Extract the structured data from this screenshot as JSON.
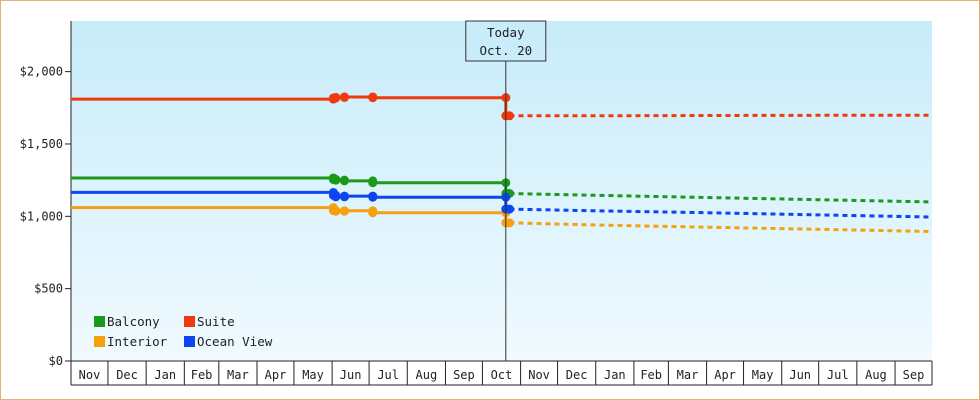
{
  "chart_data": {
    "type": "line",
    "title": "",
    "xlabel": "",
    "ylabel": "",
    "ylim": [
      0,
      2350
    ],
    "y_ticks": [
      {
        "value": 0,
        "label": "$0"
      },
      {
        "value": 500,
        "label": "$500"
      },
      {
        "value": 1000,
        "label": "$1,000"
      },
      {
        "value": 1500,
        "label": "$1,500"
      },
      {
        "value": 2000,
        "label": "$2,000"
      }
    ],
    "x_range": [
      "2016-11-01",
      "2018-09-30"
    ],
    "x_months": [
      {
        "start": "2016-11-01",
        "label": "Nov"
      },
      {
        "start": "2016-12-01",
        "label": "Dec"
      },
      {
        "start": "2017-01-01",
        "label": "Jan"
      },
      {
        "start": "2017-02-01",
        "label": "Feb"
      },
      {
        "start": "2017-03-01",
        "label": "Mar"
      },
      {
        "start": "2017-04-01",
        "label": "Apr"
      },
      {
        "start": "2017-05-01",
        "label": "May"
      },
      {
        "start": "2017-06-01",
        "label": "Jun"
      },
      {
        "start": "2017-07-01",
        "label": "Jul"
      },
      {
        "start": "2017-08-01",
        "label": "Aug"
      },
      {
        "start": "2017-09-01",
        "label": "Sep"
      },
      {
        "start": "2017-10-01",
        "label": "Oct"
      },
      {
        "start": "2017-11-01",
        "label": "Nov"
      },
      {
        "start": "2017-12-01",
        "label": "Dec"
      },
      {
        "start": "2018-01-01",
        "label": "Jan"
      },
      {
        "start": "2018-02-01",
        "label": "Feb"
      },
      {
        "start": "2018-03-01",
        "label": "Mar"
      },
      {
        "start": "2018-04-01",
        "label": "Apr"
      },
      {
        "start": "2018-05-01",
        "label": "May"
      },
      {
        "start": "2018-06-01",
        "label": "Jun"
      },
      {
        "start": "2018-07-01",
        "label": "Jul"
      },
      {
        "start": "2018-08-01",
        "label": "Aug"
      },
      {
        "start": "2018-09-01",
        "label": "Sep"
      }
    ],
    "today": {
      "date": "2017-10-20",
      "label_line1": "Today",
      "label_line2": "Oct. 20"
    },
    "grid": false,
    "legend_position": "bottom-left",
    "series": [
      {
        "name": "Balcony",
        "color": "#1a9a1a",
        "history": [
          {
            "x": "2016-11-01",
            "y": 1265
          },
          {
            "x": "2017-06-02",
            "y": 1265
          },
          {
            "x": "2017-06-02",
            "y": 1255
          },
          {
            "x": "2017-06-04",
            "y": 1255
          },
          {
            "x": "2017-06-04",
            "y": 1250
          },
          {
            "x": "2017-06-11",
            "y": 1250
          },
          {
            "x": "2017-06-11",
            "y": 1245
          },
          {
            "x": "2017-07-04",
            "y": 1245
          },
          {
            "x": "2017-07-04",
            "y": 1232
          },
          {
            "x": "2017-10-20",
            "y": 1232
          },
          {
            "x": "2017-10-20",
            "y": 1158
          },
          {
            "x": "2017-10-23",
            "y": 1158
          }
        ],
        "forecast": [
          {
            "x": "2017-10-23",
            "y": 1158
          },
          {
            "x": "2018-01-01",
            "y": 1145
          },
          {
            "x": "2018-04-01",
            "y": 1130
          },
          {
            "x": "2018-07-01",
            "y": 1115
          },
          {
            "x": "2018-09-30",
            "y": 1100
          }
        ]
      },
      {
        "name": "Suite",
        "color": "#ee3a0c",
        "history": [
          {
            "x": "2016-11-01",
            "y": 1810
          },
          {
            "x": "2017-06-02",
            "y": 1810
          },
          {
            "x": "2017-06-02",
            "y": 1818
          },
          {
            "x": "2017-06-04",
            "y": 1818
          },
          {
            "x": "2017-06-04",
            "y": 1822
          },
          {
            "x": "2017-06-11",
            "y": 1822
          },
          {
            "x": "2017-06-11",
            "y": 1825
          },
          {
            "x": "2017-07-04",
            "y": 1825
          },
          {
            "x": "2017-07-04",
            "y": 1820
          },
          {
            "x": "2017-10-20",
            "y": 1820
          },
          {
            "x": "2017-10-20",
            "y": 1695
          },
          {
            "x": "2017-10-23",
            "y": 1695
          }
        ],
        "forecast": [
          {
            "x": "2017-10-23",
            "y": 1695
          },
          {
            "x": "2018-01-01",
            "y": 1695
          },
          {
            "x": "2018-04-01",
            "y": 1697
          },
          {
            "x": "2018-07-01",
            "y": 1698
          },
          {
            "x": "2018-09-30",
            "y": 1698
          }
        ]
      },
      {
        "name": "Interior",
        "color": "#f5a00f",
        "history": [
          {
            "x": "2016-11-01",
            "y": 1060
          },
          {
            "x": "2017-06-02",
            "y": 1060
          },
          {
            "x": "2017-06-02",
            "y": 1040
          },
          {
            "x": "2017-06-04",
            "y": 1040
          },
          {
            "x": "2017-06-04",
            "y": 1035
          },
          {
            "x": "2017-06-11",
            "y": 1035
          },
          {
            "x": "2017-06-11",
            "y": 1038
          },
          {
            "x": "2017-07-04",
            "y": 1038
          },
          {
            "x": "2017-07-04",
            "y": 1025
          },
          {
            "x": "2017-10-20",
            "y": 1025
          },
          {
            "x": "2017-10-20",
            "y": 955
          },
          {
            "x": "2017-10-23",
            "y": 955
          }
        ],
        "forecast": [
          {
            "x": "2017-10-23",
            "y": 955
          },
          {
            "x": "2018-01-01",
            "y": 940
          },
          {
            "x": "2018-04-01",
            "y": 925
          },
          {
            "x": "2018-07-01",
            "y": 910
          },
          {
            "x": "2018-09-30",
            "y": 895
          }
        ]
      },
      {
        "name": "Ocean View",
        "color": "#0d45f0",
        "history": [
          {
            "x": "2016-11-01",
            "y": 1165
          },
          {
            "x": "2017-06-02",
            "y": 1165
          },
          {
            "x": "2017-06-02",
            "y": 1145
          },
          {
            "x": "2017-06-04",
            "y": 1145
          },
          {
            "x": "2017-06-04",
            "y": 1135
          },
          {
            "x": "2017-06-11",
            "y": 1135
          },
          {
            "x": "2017-06-11",
            "y": 1140
          },
          {
            "x": "2017-07-04",
            "y": 1140
          },
          {
            "x": "2017-07-04",
            "y": 1132
          },
          {
            "x": "2017-10-20",
            "y": 1132
          },
          {
            "x": "2017-10-20",
            "y": 1050
          },
          {
            "x": "2017-10-23",
            "y": 1050
          }
        ],
        "forecast": [
          {
            "x": "2017-10-23",
            "y": 1050
          },
          {
            "x": "2018-01-01",
            "y": 1038
          },
          {
            "x": "2018-04-01",
            "y": 1025
          },
          {
            "x": "2018-07-01",
            "y": 1010
          },
          {
            "x": "2018-09-30",
            "y": 995
          }
        ]
      }
    ],
    "legend_order": [
      "Balcony",
      "Suite",
      "Interior",
      "Ocean View"
    ],
    "colors": {
      "plot_top": "#c8ecfa",
      "plot_bottom": "#f0faff",
      "frame_border": "#e8b074"
    }
  }
}
